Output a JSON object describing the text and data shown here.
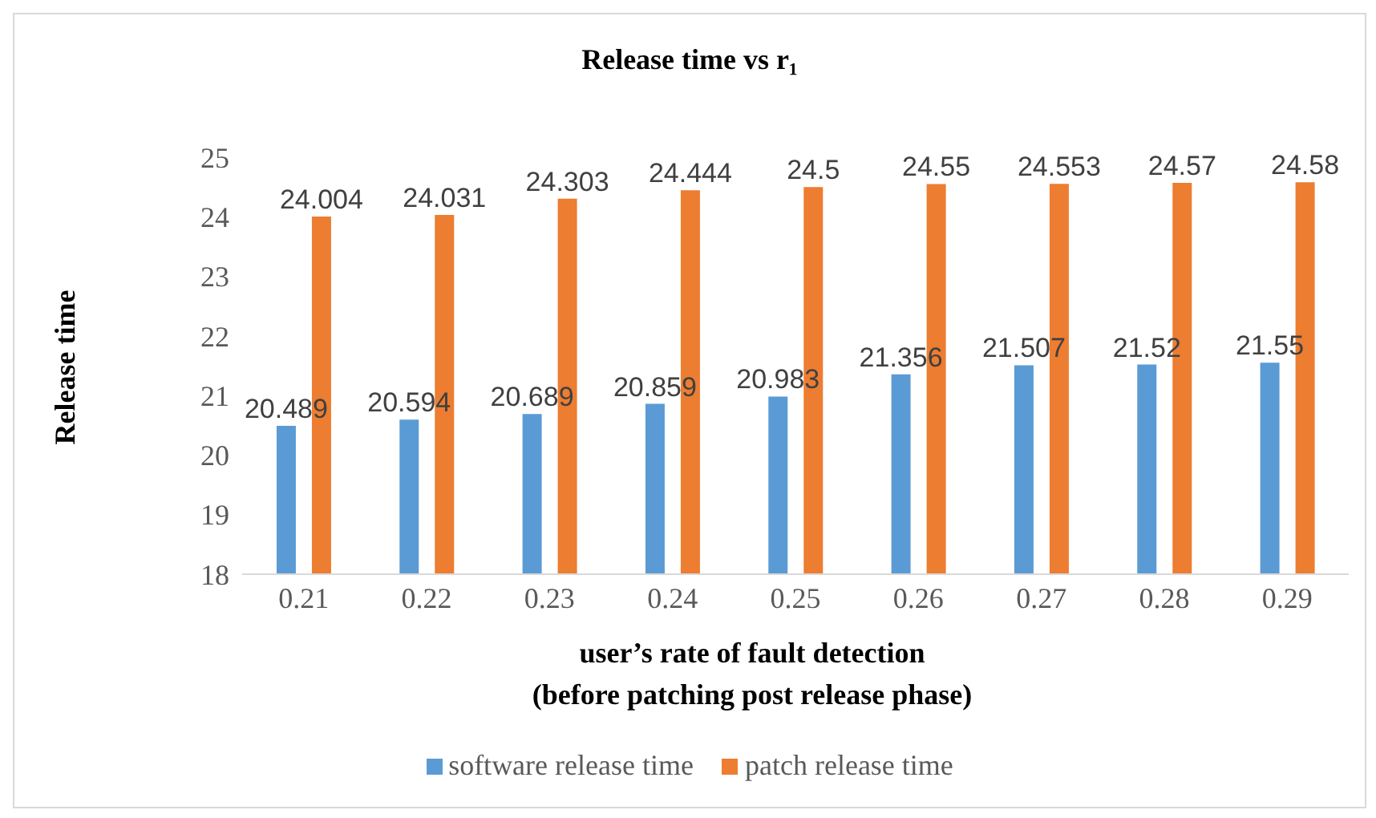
{
  "chart_data": {
    "type": "bar",
    "title": "Release time vs r₁",
    "xlabel": "user’s rate of fault detection\n(before patching post release phase)",
    "ylabel": "Release time",
    "categories": [
      "0.21",
      "0.22",
      "0.23",
      "0.24",
      "0.25",
      "0.26",
      "0.27",
      "0.28",
      "0.29"
    ],
    "series": [
      {
        "name": "software release time",
        "color": "#5b9bd5",
        "values": [
          20.489,
          20.594,
          20.689,
          20.859,
          20.983,
          21.356,
          21.507,
          21.52,
          21.55
        ]
      },
      {
        "name": "patch release time",
        "color": "#ed7d31",
        "values": [
          24.004,
          24.031,
          24.303,
          24.444,
          24.5,
          24.55,
          24.553,
          24.57,
          24.58
        ]
      }
    ],
    "ylim": [
      18,
      25
    ],
    "yticks": [
      18,
      19,
      20,
      21,
      22,
      23,
      24,
      25
    ],
    "grid": false,
    "legend": "bottom",
    "data_labels": true
  }
}
